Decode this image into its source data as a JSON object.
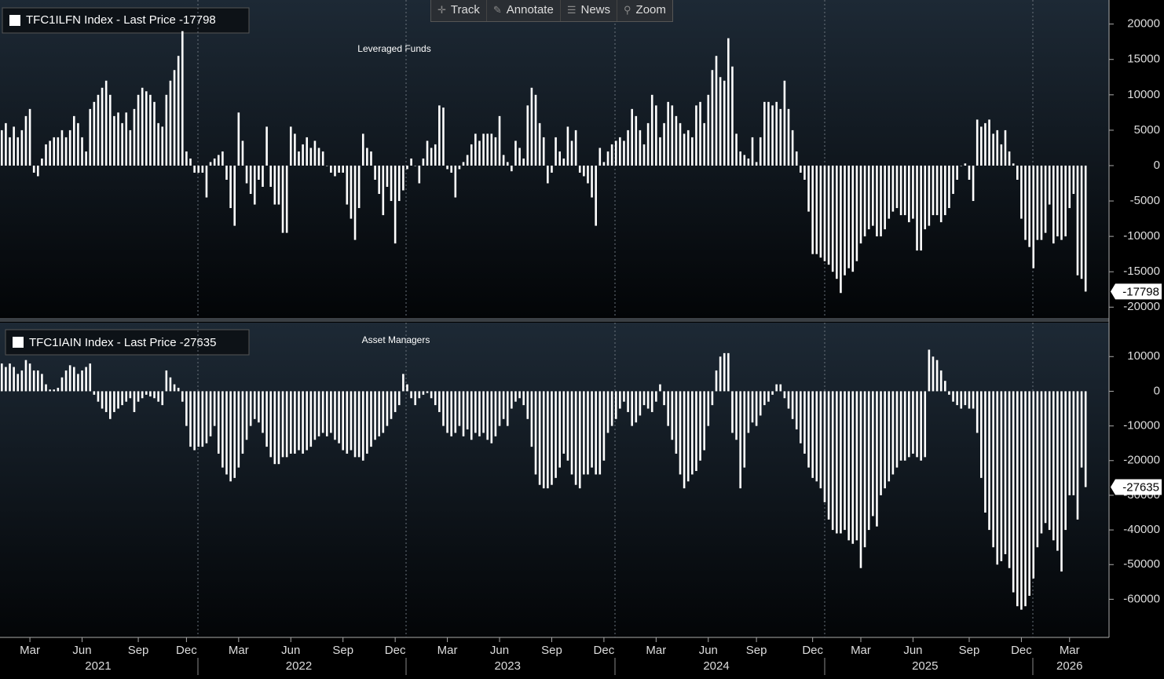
{
  "chart_data": [
    {
      "type": "bar",
      "title": "TFC1ILFN Index - Last Price -17798",
      "subtitle": "Leveraged Funds",
      "color": "#ffffff",
      "ylim": [
        -21300,
        23400
      ],
      "yticks": [
        20000,
        15000,
        10000,
        5000,
        0,
        -5000,
        -10000,
        -15000,
        -20000
      ],
      "values": [
        5000,
        6000,
        4000,
        5500,
        4000,
        5000,
        7000,
        8000,
        -1000,
        -1500,
        1000,
        3000,
        3500,
        4000,
        4000,
        5000,
        4000,
        5000,
        7000,
        6000,
        4000,
        2000,
        8000,
        9000,
        10000,
        11000,
        12000,
        10000,
        7000,
        7500,
        6000,
        7500,
        5000,
        8000,
        10000,
        11000,
        10500,
        10000,
        9000,
        6000,
        5500,
        10000,
        12000,
        13500,
        15500,
        19000,
        2000,
        1000,
        -1000,
        -1000,
        -1000,
        -4500,
        500,
        1000,
        1500,
        2000,
        -2000,
        -6000,
        -8500,
        7500,
        3500,
        -2500,
        -4000,
        -5500,
        -2000,
        -3000,
        5500,
        -3000,
        -5500,
        -5500,
        -9500,
        -9500,
        5500,
        4500,
        2000,
        3000,
        4000,
        2500,
        3500,
        2500,
        2000,
        0,
        -1000,
        -1500,
        -1000,
        -1000,
        -5500,
        -7500,
        -10500,
        -6000,
        4500,
        2500,
        2000,
        -2000,
        -4000,
        -7000,
        -3000,
        -5000,
        -11000,
        -5000,
        -3500,
        -500,
        1000,
        0,
        -2500,
        1000,
        3500,
        2500,
        3000,
        8500,
        8200,
        -500,
        -1000,
        -4500,
        -500,
        500,
        1500,
        3000,
        4500,
        3500,
        4500,
        4500,
        4500,
        4000,
        7000,
        1500,
        500,
        -800,
        3500,
        2500,
        1000,
        8500,
        11000,
        10000,
        6000,
        4000,
        -2500,
        -1000,
        4000,
        2000,
        1000,
        5500,
        3500,
        5000,
        -1000,
        -1500,
        -2500,
        -4500,
        -8500,
        2500,
        500,
        2000,
        3000,
        3500,
        4000,
        3500,
        5000,
        8000,
        7000,
        5000,
        3000,
        6000,
        10000,
        8500,
        4000,
        6000,
        9000,
        8500,
        7000,
        6000,
        4500,
        5000,
        4000,
        8500,
        9000,
        6000,
        10000,
        13500,
        15500,
        12500,
        12000,
        18000,
        14000,
        4500,
        2000,
        1500,
        1000,
        4000,
        500,
        4000,
        9000,
        9000,
        8500,
        9000,
        8000,
        12000,
        8000,
        5000,
        2000,
        -1000,
        -2000,
        -6500,
        -12500,
        -12500,
        -13000,
        -13500,
        -14000,
        -15000,
        -16000,
        -18000,
        -15500,
        -14500,
        -15000,
        -13500,
        -11000,
        -10000,
        -9000,
        -8500,
        -10000,
        -10000,
        -9000,
        -7500,
        -6500,
        -6000,
        -7000,
        -7000,
        -8000,
        -7500,
        -12000,
        -12000,
        -9000,
        -8500,
        -7000,
        -7000,
        -8000,
        -7000,
        -6000,
        -4000,
        -2000,
        0,
        300,
        -2000,
        -5000,
        6500,
        5500,
        6000,
        6500,
        4500,
        5000,
        3000,
        5000,
        2000,
        300,
        -2000,
        -7500,
        -10500,
        -11500,
        -14500,
        -10500,
        -10500,
        -9500,
        -5500,
        -11000,
        -10000,
        -10500,
        -10000,
        -6000,
        -4000,
        -15500,
        -16000,
        -17798
      ]
    },
    {
      "type": "bar",
      "title": "TFC1IAIN Index - Last Price -27635",
      "subtitle": "Asset Managers",
      "color": "#ffffff",
      "ylim": [
        -71000,
        19800
      ],
      "yticks": [
        10000,
        0,
        -10000,
        -20000,
        -30000,
        -40000,
        -50000,
        -60000
      ],
      "categories": [
        null,
        null,
        null,
        null,
        null,
        null,
        null,
        "Mar",
        null,
        null,
        null,
        null,
        null,
        null,
        null,
        null,
        null,
        null,
        null,
        null,
        "Jun",
        null,
        null,
        null,
        null,
        null,
        null,
        null,
        null,
        null,
        null,
        null,
        null,
        null,
        "Sep",
        null,
        null,
        null,
        null,
        null,
        null,
        null,
        null,
        null,
        null,
        null,
        "Dec",
        null,
        null,
        null,
        null,
        null,
        null,
        null,
        null,
        null,
        null,
        null,
        null,
        "Mar",
        null,
        null,
        null,
        null,
        null,
        null,
        null,
        null,
        null,
        null,
        null,
        null,
        "Jun",
        null,
        null,
        null,
        null,
        null,
        null,
        null,
        null,
        null,
        null,
        null,
        null,
        "Sep",
        null,
        null,
        null,
        null,
        null,
        null,
        null,
        null,
        null,
        null,
        null,
        null,
        "Dec",
        null,
        null,
        null,
        null,
        null,
        null,
        null,
        null,
        null,
        null,
        null,
        null,
        "Mar",
        null,
        null,
        null,
        null,
        null,
        null,
        null,
        null,
        null,
        null,
        null,
        null,
        "Jun",
        null,
        null,
        null,
        null,
        null,
        null,
        null,
        null,
        null,
        null,
        null,
        null,
        "Sep",
        null,
        null,
        null,
        null,
        null,
        null,
        null,
        null,
        null,
        null,
        null,
        null,
        "Dec",
        null,
        null,
        null,
        null,
        null,
        null,
        null,
        null,
        null,
        null,
        null,
        null,
        "Mar",
        null,
        null,
        null,
        null,
        null,
        null,
        null,
        null,
        null,
        null,
        null,
        null,
        "Jun",
        null,
        null,
        null,
        null,
        null,
        null,
        null,
        null,
        null,
        null,
        null,
        "Sep",
        null,
        null,
        null,
        null,
        null,
        null,
        null,
        null,
        null,
        null,
        null,
        null,
        null,
        "Dec",
        null,
        null,
        null,
        null,
        null,
        null,
        null,
        null,
        null,
        null,
        null,
        "Mar",
        null,
        null,
        null,
        null,
        null,
        null,
        null,
        null,
        null,
        null,
        null,
        null,
        "Jun",
        null,
        null,
        null,
        null,
        null,
        null,
        null,
        null,
        null,
        null,
        null,
        null,
        null,
        "Sep",
        null,
        null,
        null,
        null,
        null,
        null,
        null,
        null,
        null,
        null,
        null,
        null,
        "Dec",
        null,
        null,
        null,
        null,
        null,
        null,
        null,
        null,
        null,
        null,
        null,
        "Mar",
        null,
        null,
        null,
        null
      ],
      "years": [
        null,
        null,
        null,
        null,
        null,
        null,
        null,
        null,
        null,
        null,
        null,
        null,
        null,
        null,
        null,
        null,
        null,
        null,
        null,
        null,
        null,
        null,
        null,
        null,
        "2021",
        null,
        null,
        null,
        null,
        null,
        null,
        null,
        null,
        null,
        null,
        null,
        null,
        null,
        null,
        null,
        null,
        null,
        null,
        null,
        null,
        null,
        null,
        null,
        null,
        null,
        null,
        null,
        null,
        null,
        null,
        null,
        null,
        null,
        null,
        null,
        null,
        null,
        null,
        null,
        null,
        null,
        null,
        null,
        null,
        null,
        null,
        null,
        null,
        null,
        "2022",
        null,
        null,
        null,
        null,
        null,
        null,
        null,
        null,
        null,
        null,
        null,
        null,
        null,
        null,
        null,
        null,
        null,
        null,
        null,
        null,
        null,
        null,
        null,
        null,
        null,
        null,
        null,
        null,
        null,
        null,
        null,
        null,
        null,
        null,
        null,
        null,
        null,
        null,
        null,
        null,
        null,
        null,
        null,
        null,
        null,
        null,
        null,
        null,
        null,
        null,
        null,
        "2023",
        null,
        null,
        null,
        null,
        null,
        null,
        null,
        null,
        null,
        null,
        null,
        null,
        null,
        null,
        null,
        null,
        null,
        null,
        null,
        null,
        null,
        null,
        null,
        null,
        null,
        null,
        null,
        null,
        null,
        null,
        null,
        null,
        null,
        null,
        null,
        null,
        null,
        null,
        null,
        null,
        null,
        null,
        null,
        null,
        null,
        null,
        null,
        null,
        null,
        null,
        null,
        "2024",
        null,
        null,
        null,
        null,
        null,
        null,
        null,
        null,
        null,
        null,
        null,
        null,
        null,
        null,
        null,
        null,
        null,
        null,
        null,
        null,
        null,
        null,
        null,
        null,
        null,
        null,
        null,
        null,
        null,
        null,
        null,
        null,
        null,
        null,
        null,
        null,
        null,
        null,
        null,
        null,
        null,
        null,
        null,
        null,
        null,
        null,
        null,
        null,
        null,
        null,
        null,
        "2025",
        null,
        null,
        null,
        null,
        null,
        null,
        null,
        null,
        null,
        null,
        null,
        null,
        null,
        null,
        null,
        null,
        null,
        null,
        null,
        null,
        null,
        null,
        null,
        null,
        null,
        null,
        null,
        null,
        null,
        null,
        null,
        null,
        null,
        null,
        null,
        "2026",
        null,
        null,
        null,
        null
      ],
      "values": [
        8000,
        7000,
        8000,
        7000,
        5000,
        6000,
        9000,
        8000,
        6000,
        6000,
        5000,
        2000,
        500,
        500,
        1000,
        4000,
        6000,
        7500,
        7000,
        5000,
        6000,
        7000,
        8000,
        -1000,
        -3000,
        -5000,
        -6000,
        -8000,
        -6000,
        -5000,
        -4000,
        -3000,
        -2000,
        -6000,
        -3000,
        -2000,
        -1000,
        -1500,
        -2000,
        -3000,
        -4000,
        6000,
        4000,
        2000,
        1000,
        -3000,
        -10000,
        -16000,
        -17000,
        -16000,
        -16000,
        -15000,
        -13000,
        -10000,
        -18000,
        -22000,
        -24000,
        -26000,
        -25000,
        -22000,
        -18000,
        -14000,
        -10000,
        -8000,
        -9000,
        -12000,
        -16000,
        -19000,
        -21000,
        -21000,
        -19000,
        -19000,
        -18000,
        -18000,
        -17000,
        -18000,
        -17000,
        -16000,
        -14000,
        -13000,
        -12000,
        -13000,
        -12000,
        -14000,
        -15000,
        -17000,
        -18000,
        -17000,
        -19000,
        -19000,
        -20000,
        -18000,
        -16000,
        -14000,
        -13000,
        -12000,
        -10000,
        -8000,
        -6000,
        -4000,
        5000,
        2000,
        -2000,
        -4000,
        -2000,
        -1000,
        -500,
        -2000,
        -4000,
        -6000,
        -10000,
        -12000,
        -13000,
        -12000,
        -10000,
        -13000,
        -11000,
        -14000,
        -12000,
        -13000,
        -12000,
        -14000,
        -15000,
        -13000,
        -10000,
        -8000,
        -10000,
        -5000,
        -3000,
        -2000,
        -4000,
        -8000,
        -16000,
        -24000,
        -27000,
        -28000,
        -28000,
        -27000,
        -25000,
        -22000,
        -18000,
        -20000,
        -24000,
        -27000,
        -28000,
        -24000,
        -24000,
        -22000,
        -24000,
        -24000,
        -20000,
        -12000,
        -10000,
        -8000,
        -5000,
        -3000,
        -6000,
        -10000,
        -9000,
        -7000,
        -4000,
        -5000,
        -6000,
        -3000,
        2000,
        -4000,
        -10000,
        -14000,
        -18000,
        -24000,
        -28000,
        -26000,
        -24000,
        -23000,
        -20000,
        -17000,
        -10000,
        -4000,
        6000,
        10000,
        11000,
        11000,
        -12000,
        -14000,
        -28000,
        -22000,
        -12000,
        -9000,
        -10000,
        -7000,
        -4000,
        -3000,
        -1000,
        2000,
        2000,
        -2000,
        -5000,
        -8000,
        -11000,
        -15000,
        -18000,
        -22000,
        -25000,
        -26000,
        -28000,
        -32000,
        -37000,
        -40000,
        -41000,
        -41000,
        -40000,
        -43000,
        -44000,
        -43000,
        -51000,
        -45000,
        -40000,
        -36000,
        -39000,
        -30000,
        -28000,
        -26000,
        -24000,
        -22000,
        -20000,
        -20000,
        -19000,
        -18000,
        -19000,
        -20000,
        -19000,
        12000,
        10000,
        9000,
        6000,
        3000,
        -1000,
        -3000,
        -4000,
        -5000,
        -4000,
        -5000,
        -5000,
        -12000,
        -25000,
        -35000,
        -40000,
        -45000,
        -50000,
        -49000,
        -47000,
        -51000,
        -58000,
        -62000,
        -63000,
        -62000,
        -59000,
        -54000,
        -45000,
        -41000,
        -38000,
        -40000,
        -43000,
        -46000,
        -52000,
        -40000,
        -30000,
        -30000,
        -37000,
        -22000,
        -27635
      ]
    }
  ],
  "toolbar": [
    "Track",
    "Annotate",
    "News",
    "Zoom"
  ]
}
